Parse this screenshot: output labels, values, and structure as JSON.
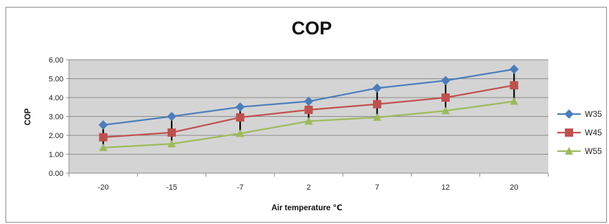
{
  "chart_data": {
    "type": "line",
    "title": "COP",
    "xlabel": "Air temperature ℃",
    "ylabel": "COP",
    "categories": [
      "-20",
      "-15",
      "-7",
      "2",
      "7",
      "12",
      "20"
    ],
    "ylim": [
      0,
      6
    ],
    "yticks": [
      "0.00",
      "1.00",
      "2.00",
      "3.00",
      "4.00",
      "5.00",
      "6.00"
    ],
    "grid": true,
    "legend_position": "right",
    "series": [
      {
        "name": "W35",
        "color": "#4a7ebb",
        "marker": "diamond",
        "values": [
          2.55,
          3.0,
          3.5,
          3.8,
          4.5,
          4.9,
          5.5
        ]
      },
      {
        "name": "W45",
        "color": "#c0504d",
        "marker": "square",
        "values": [
          1.9,
          2.15,
          2.95,
          3.35,
          3.65,
          4.0,
          4.65
        ]
      },
      {
        "name": "W55",
        "color": "#9bbb59",
        "marker": "triangle",
        "values": [
          1.35,
          1.55,
          2.1,
          2.75,
          2.95,
          3.3,
          3.8
        ]
      }
    ],
    "error_bars": [
      {
        "low": 1.3,
        "high": 2.6
      },
      {
        "low": 1.5,
        "high": 3.0
      },
      {
        "low": 2.0,
        "high": 3.5
      },
      {
        "low": 2.7,
        "high": 3.8
      },
      {
        "low": 2.9,
        "high": 4.5
      },
      {
        "low": 3.2,
        "high": 4.9
      },
      {
        "low": 3.7,
        "high": 5.4
      }
    ]
  }
}
